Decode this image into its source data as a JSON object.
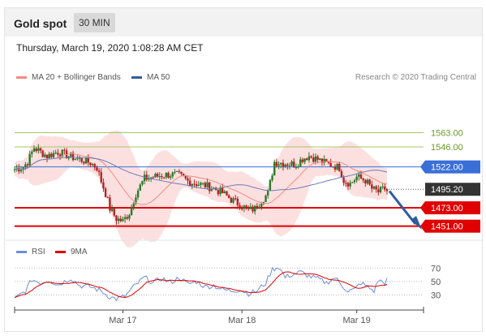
{
  "header": {
    "title": "Gold spot",
    "timeframe": "30 MIN"
  },
  "timestamp": "Thursday, March 19, 2020 1:08:28 AM CET",
  "legend": {
    "items": [
      {
        "label": "MA 20 + Bollinger Bands",
        "color": "#f28b82"
      },
      {
        "label": "MA 50",
        "color": "#2f5d9e"
      }
    ],
    "credit": "Research © 2020 Trading Central"
  },
  "rsi_legend": {
    "items": [
      {
        "label": "RSI",
        "color": "#6b8ed6"
      },
      {
        "label": "9MA",
        "color": "#e00000"
      }
    ]
  },
  "colors": {
    "up": "#2a7a2a",
    "down": "#b22222",
    "band": "#fbd3d3",
    "ma20": "#f28b82",
    "ma50": "#6b7db8",
    "support": "#e00000",
    "resistance_green": "#a5c56b",
    "pivot": "#3a6fd8",
    "last": "#333333"
  },
  "chart_data": [
    {
      "type": "candlestick",
      "x_tick_labels": [
        "Mar 17",
        "Mar 18",
        "Mar 19"
      ],
      "ylim": [
        1440,
        1615
      ],
      "levels": [
        {
          "label": "1563.00",
          "value": 1563,
          "kind": "resistance"
        },
        {
          "label": "1546.00",
          "value": 1546,
          "kind": "resistance"
        },
        {
          "label": "1522.00",
          "value": 1522,
          "kind": "pivot"
        },
        {
          "label": "1495.20",
          "value": 1495.2,
          "kind": "last"
        },
        {
          "label": "1473.00",
          "value": 1473,
          "kind": "support"
        },
        {
          "label": "1451.00",
          "value": 1451,
          "kind": "support"
        }
      ],
      "anchors": [
        [
          0,
          1519
        ],
        [
          4,
          1522
        ],
        [
          6,
          1528
        ],
        [
          9,
          1545
        ],
        [
          12,
          1540
        ],
        [
          15,
          1535
        ],
        [
          20,
          1540
        ],
        [
          25,
          1535
        ],
        [
          30,
          1531
        ],
        [
          35,
          1527
        ],
        [
          38,
          1521
        ],
        [
          40,
          1505
        ],
        [
          42,
          1490
        ],
        [
          44,
          1472
        ],
        [
          47,
          1460
        ],
        [
          50,
          1457
        ],
        [
          53,
          1467
        ],
        [
          56,
          1490
        ],
        [
          60,
          1508
        ],
        [
          64,
          1510
        ],
        [
          68,
          1512
        ],
        [
          72,
          1513
        ],
        [
          76,
          1512
        ],
        [
          80,
          1505
        ],
        [
          84,
          1502
        ],
        [
          88,
          1500
        ],
        [
          92,
          1496
        ],
        [
          96,
          1491
        ],
        [
          100,
          1483
        ],
        [
          104,
          1477
        ],
        [
          108,
          1470
        ],
        [
          111,
          1472
        ],
        [
          114,
          1482
        ],
        [
          117,
          1490
        ],
        [
          120,
          1528
        ],
        [
          123,
          1527
        ],
        [
          126,
          1526
        ],
        [
          130,
          1525
        ],
        [
          133,
          1532
        ],
        [
          136,
          1535
        ],
        [
          140,
          1531
        ],
        [
          144,
          1526
        ],
        [
          148,
          1523
        ],
        [
          150,
          1521
        ],
        [
          152,
          1506
        ],
        [
          155,
          1502
        ],
        [
          158,
          1510
        ],
        [
          162,
          1506
        ],
        [
          165,
          1496
        ],
        [
          168,
          1492
        ],
        [
          171,
          1496
        ],
        [
          172,
          1493
        ]
      ],
      "n_candles": 173
    },
    {
      "type": "line",
      "name": "RSI",
      "yticks": [
        "70",
        "50",
        "30"
      ],
      "ylim": [
        10,
        80
      ],
      "rsi_anchors": [
        [
          0,
          24
        ],
        [
          5,
          36
        ],
        [
          8,
          53
        ],
        [
          12,
          48
        ],
        [
          16,
          52
        ],
        [
          20,
          45
        ],
        [
          26,
          55
        ],
        [
          30,
          44
        ],
        [
          35,
          42
        ],
        [
          40,
          36
        ],
        [
          44,
          27
        ],
        [
          47,
          24
        ],
        [
          51,
          28
        ],
        [
          55,
          42
        ],
        [
          60,
          56
        ],
        [
          64,
          48
        ],
        [
          68,
          55
        ],
        [
          72,
          48
        ],
        [
          76,
          56
        ],
        [
          80,
          46
        ],
        [
          84,
          50
        ],
        [
          88,
          42
        ],
        [
          92,
          44
        ],
        [
          96,
          38
        ],
        [
          100,
          36
        ],
        [
          104,
          38
        ],
        [
          108,
          32
        ],
        [
          112,
          36
        ],
        [
          116,
          48
        ],
        [
          119,
          68
        ],
        [
          122,
          72
        ],
        [
          125,
          56
        ],
        [
          128,
          60
        ],
        [
          132,
          64
        ],
        [
          136,
          58
        ],
        [
          140,
          54
        ],
        [
          144,
          48
        ],
        [
          148,
          56
        ],
        [
          151,
          45
        ],
        [
          154,
          36
        ],
        [
          157,
          38
        ],
        [
          160,
          48
        ],
        [
          163,
          42
        ],
        [
          166,
          36
        ],
        [
          168,
          52
        ],
        [
          171,
          48
        ],
        [
          172,
          53
        ]
      ]
    }
  ]
}
